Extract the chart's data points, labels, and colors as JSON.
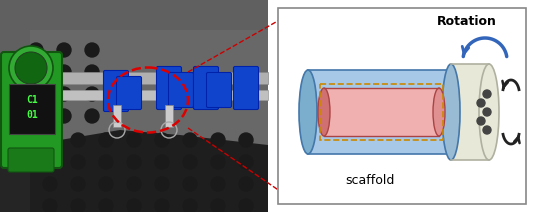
{
  "figure_width": 5.34,
  "figure_height": 2.12,
  "dpi": 100,
  "rotation_label": "Rotation",
  "scaffold_label": "scaffold",
  "cylinder_outer_color": "#a8c8e8",
  "cylinder_inner_color": "#f0b0b0",
  "cylinder_inner_tube_color": "#e07070",
  "cylinder_cap_color": "#e8e8d8",
  "cylinder_cap_edge_color": "#b0b0a0",
  "dashed_rect_color": "#cc8800",
  "arrow_color": "#3366bb",
  "squeeze_arrow_color": "#222222",
  "outer_border_color": "#888888",
  "schematic_bg": "#ffffff",
  "photo_bg_dark": "#2a2a2a",
  "photo_bg_mid": "#4a4a4a",
  "rail_color": "#909090",
  "green_body_color": "#229922",
  "green_edge_color": "#115511",
  "screen_bg": "#111111",
  "screen_text_color": "#44ff44",
  "blue_clip_color": "#1144cc",
  "red_ellipse_color": "#dd0000",
  "red_line_color": "#cc0000",
  "hole_color": "#1a1a1a",
  "metal_bg": "#555555",
  "metal_dark": "#3a3a3a"
}
